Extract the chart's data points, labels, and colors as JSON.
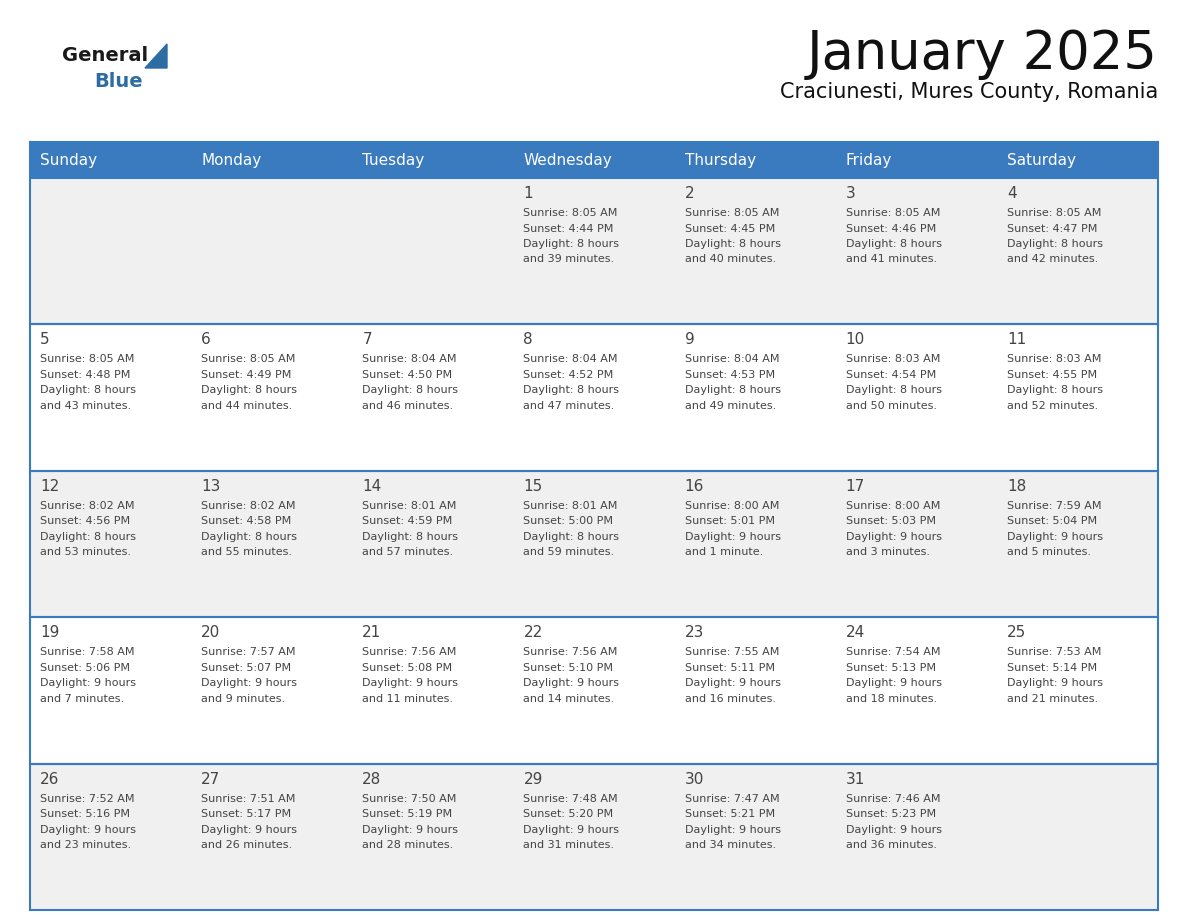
{
  "title": "January 2025",
  "subtitle": "Craciunesti, Mures County, Romania",
  "header_bg": "#3a7abf",
  "header_text": "#ffffff",
  "day_names": [
    "Sunday",
    "Monday",
    "Tuesday",
    "Wednesday",
    "Thursday",
    "Friday",
    "Saturday"
  ],
  "bg_color": "#ffffff",
  "cell_bg_odd": "#f0f0f0",
  "cell_bg_even": "#ffffff",
  "border_color": "#3a7abf",
  "text_color": "#444444",
  "title_color": "#111111",
  "logo_general_color": "#1a1a1a",
  "logo_blue_color": "#2e6da4",
  "calendar": [
    [
      null,
      null,
      null,
      {
        "day": 1,
        "sunrise": "8:05 AM",
        "sunset": "4:44 PM",
        "daylight_h": "8 hours",
        "daylight_m": "and 39 minutes."
      },
      {
        "day": 2,
        "sunrise": "8:05 AM",
        "sunset": "4:45 PM",
        "daylight_h": "8 hours",
        "daylight_m": "and 40 minutes."
      },
      {
        "day": 3,
        "sunrise": "8:05 AM",
        "sunset": "4:46 PM",
        "daylight_h": "8 hours",
        "daylight_m": "and 41 minutes."
      },
      {
        "day": 4,
        "sunrise": "8:05 AM",
        "sunset": "4:47 PM",
        "daylight_h": "8 hours",
        "daylight_m": "and 42 minutes."
      }
    ],
    [
      {
        "day": 5,
        "sunrise": "8:05 AM",
        "sunset": "4:48 PM",
        "daylight_h": "8 hours",
        "daylight_m": "and 43 minutes."
      },
      {
        "day": 6,
        "sunrise": "8:05 AM",
        "sunset": "4:49 PM",
        "daylight_h": "8 hours",
        "daylight_m": "and 44 minutes."
      },
      {
        "day": 7,
        "sunrise": "8:04 AM",
        "sunset": "4:50 PM",
        "daylight_h": "8 hours",
        "daylight_m": "and 46 minutes."
      },
      {
        "day": 8,
        "sunrise": "8:04 AM",
        "sunset": "4:52 PM",
        "daylight_h": "8 hours",
        "daylight_m": "and 47 minutes."
      },
      {
        "day": 9,
        "sunrise": "8:04 AM",
        "sunset": "4:53 PM",
        "daylight_h": "8 hours",
        "daylight_m": "and 49 minutes."
      },
      {
        "day": 10,
        "sunrise": "8:03 AM",
        "sunset": "4:54 PM",
        "daylight_h": "8 hours",
        "daylight_m": "and 50 minutes."
      },
      {
        "day": 11,
        "sunrise": "8:03 AM",
        "sunset": "4:55 PM",
        "daylight_h": "8 hours",
        "daylight_m": "and 52 minutes."
      }
    ],
    [
      {
        "day": 12,
        "sunrise": "8:02 AM",
        "sunset": "4:56 PM",
        "daylight_h": "8 hours",
        "daylight_m": "and 53 minutes."
      },
      {
        "day": 13,
        "sunrise": "8:02 AM",
        "sunset": "4:58 PM",
        "daylight_h": "8 hours",
        "daylight_m": "and 55 minutes."
      },
      {
        "day": 14,
        "sunrise": "8:01 AM",
        "sunset": "4:59 PM",
        "daylight_h": "8 hours",
        "daylight_m": "and 57 minutes."
      },
      {
        "day": 15,
        "sunrise": "8:01 AM",
        "sunset": "5:00 PM",
        "daylight_h": "8 hours",
        "daylight_m": "and 59 minutes."
      },
      {
        "day": 16,
        "sunrise": "8:00 AM",
        "sunset": "5:01 PM",
        "daylight_h": "9 hours",
        "daylight_m": "and 1 minute."
      },
      {
        "day": 17,
        "sunrise": "8:00 AM",
        "sunset": "5:03 PM",
        "daylight_h": "9 hours",
        "daylight_m": "and 3 minutes."
      },
      {
        "day": 18,
        "sunrise": "7:59 AM",
        "sunset": "5:04 PM",
        "daylight_h": "9 hours",
        "daylight_m": "and 5 minutes."
      }
    ],
    [
      {
        "day": 19,
        "sunrise": "7:58 AM",
        "sunset": "5:06 PM",
        "daylight_h": "9 hours",
        "daylight_m": "and 7 minutes."
      },
      {
        "day": 20,
        "sunrise": "7:57 AM",
        "sunset": "5:07 PM",
        "daylight_h": "9 hours",
        "daylight_m": "and 9 minutes."
      },
      {
        "day": 21,
        "sunrise": "7:56 AM",
        "sunset": "5:08 PM",
        "daylight_h": "9 hours",
        "daylight_m": "and 11 minutes."
      },
      {
        "day": 22,
        "sunrise": "7:56 AM",
        "sunset": "5:10 PM",
        "daylight_h": "9 hours",
        "daylight_m": "and 14 minutes."
      },
      {
        "day": 23,
        "sunrise": "7:55 AM",
        "sunset": "5:11 PM",
        "daylight_h": "9 hours",
        "daylight_m": "and 16 minutes."
      },
      {
        "day": 24,
        "sunrise": "7:54 AM",
        "sunset": "5:13 PM",
        "daylight_h": "9 hours",
        "daylight_m": "and 18 minutes."
      },
      {
        "day": 25,
        "sunrise": "7:53 AM",
        "sunset": "5:14 PM",
        "daylight_h": "9 hours",
        "daylight_m": "and 21 minutes."
      }
    ],
    [
      {
        "day": 26,
        "sunrise": "7:52 AM",
        "sunset": "5:16 PM",
        "daylight_h": "9 hours",
        "daylight_m": "and 23 minutes."
      },
      {
        "day": 27,
        "sunrise": "7:51 AM",
        "sunset": "5:17 PM",
        "daylight_h": "9 hours",
        "daylight_m": "and 26 minutes."
      },
      {
        "day": 28,
        "sunrise": "7:50 AM",
        "sunset": "5:19 PM",
        "daylight_h": "9 hours",
        "daylight_m": "and 28 minutes."
      },
      {
        "day": 29,
        "sunrise": "7:48 AM",
        "sunset": "5:20 PM",
        "daylight_h": "9 hours",
        "daylight_m": "and 31 minutes."
      },
      {
        "day": 30,
        "sunrise": "7:47 AM",
        "sunset": "5:21 PM",
        "daylight_h": "9 hours",
        "daylight_m": "and 34 minutes."
      },
      {
        "day": 31,
        "sunrise": "7:46 AM",
        "sunset": "5:23 PM",
        "daylight_h": "9 hours",
        "daylight_m": "and 36 minutes."
      },
      null
    ]
  ],
  "n_rows": 5,
  "n_cols": 7
}
